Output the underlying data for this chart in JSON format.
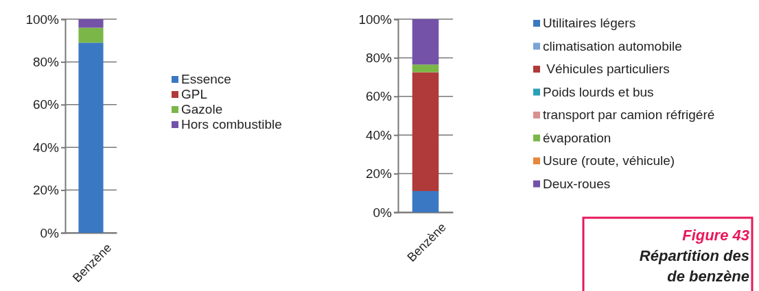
{
  "chart_data": [
    {
      "type": "bar",
      "stacked": true,
      "categories": [
        "Benzène"
      ],
      "ylim": [
        0,
        100
      ],
      "yticks": [
        {
          "value": 0,
          "label": "0%"
        },
        {
          "value": 20,
          "label": "20%"
        },
        {
          "value": 40,
          "label": "40%"
        },
        {
          "value": 60,
          "label": "60%"
        },
        {
          "value": 80,
          "label": "80%"
        },
        {
          "value": 100,
          "label": "100%"
        }
      ],
      "grid": "y",
      "legend": "right",
      "series": [
        {
          "name": "Essence",
          "color": "#3a78c3",
          "values": [
            89
          ]
        },
        {
          "name": "GPL",
          "color": "#b03a3a",
          "values": [
            0
          ]
        },
        {
          "name": "Gazole",
          "color": "#7ab648",
          "values": [
            7
          ]
        },
        {
          "name": "Hors combustible",
          "color": "#7452a8",
          "values": [
            4
          ]
        }
      ]
    },
    {
      "type": "bar",
      "stacked": true,
      "categories": [
        "Benzène"
      ],
      "ylim": [
        0,
        100
      ],
      "yticks": [
        {
          "value": 0,
          "label": "0%"
        },
        {
          "value": 20,
          "label": "20%"
        },
        {
          "value": 40,
          "label": "40%"
        },
        {
          "value": 60,
          "label": "60%"
        },
        {
          "value": 80,
          "label": "80%"
        },
        {
          "value": 100,
          "label": "100%"
        }
      ],
      "grid": "y",
      "legend": "right",
      "series": [
        {
          "name": "Utilitaires légers",
          "color": "#3a78c3",
          "values": [
            11
          ]
        },
        {
          "name": "climatisation automobile",
          "color": "#7ba3d8",
          "values": [
            0
          ]
        },
        {
          "name": " Véhicules particuliers",
          "color": "#b03a3a",
          "values": [
            61.5
          ]
        },
        {
          "name": "Poids lourds et bus",
          "color": "#2aa0b8",
          "values": [
            0
          ]
        },
        {
          "name": "transport par camion réfrigéré",
          "color": "#d99090",
          "values": [
            0
          ]
        },
        {
          "name": "évaporation",
          "color": "#7ab648",
          "values": [
            4
          ]
        },
        {
          "name": "Usure (route, véhicule)",
          "color": "#e8883a",
          "values": [
            0
          ]
        },
        {
          "name": "Deux-roues",
          "color": "#7452a8",
          "values": [
            23.5
          ]
        }
      ],
      "annotations": [
        "Figure 43",
        "Répartition des",
        "de benzène"
      ]
    }
  ]
}
